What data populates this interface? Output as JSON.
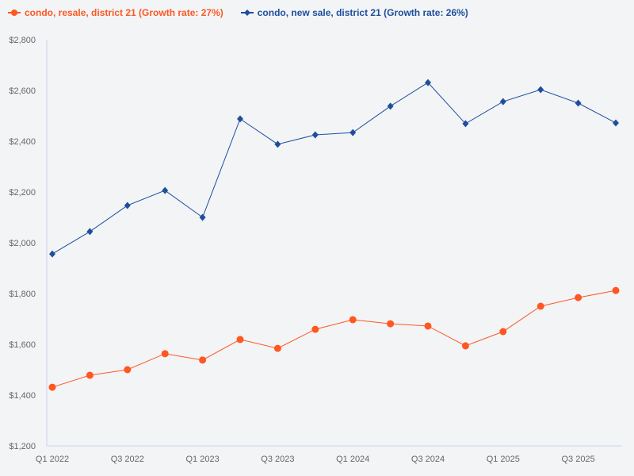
{
  "chart_data": {
    "type": "line",
    "title": "",
    "xlabel": "",
    "ylabel": "",
    "ylim": [
      1200,
      2800
    ],
    "y_ticks": [
      "$1,200",
      "$1,400",
      "$1,600",
      "$1,800",
      "$2,000",
      "$2,200",
      "$2,400",
      "$2,600",
      "$2,800"
    ],
    "y_tick_values": [
      1200,
      1400,
      1600,
      1800,
      2000,
      2200,
      2400,
      2600,
      2800
    ],
    "x": [
      "Q1 2022",
      "Q2 2022",
      "Q3 2022",
      "Q4 2022",
      "Q1 2023",
      "Q2 2023",
      "Q3 2023",
      "Q4 2023",
      "Q1 2024",
      "Q2 2024",
      "Q3 2024",
      "Q4 2024",
      "Q1 2025",
      "Q2 2025",
      "Q3 2025",
      "Q4 2025"
    ],
    "x_tick_labels": [
      "Q1 2022",
      "Q3 2022",
      "Q1 2023",
      "Q3 2023",
      "Q1 2024",
      "Q3 2024",
      "Q1 2025",
      "Q3 2025"
    ],
    "grid": false,
    "legend_position": "top-left",
    "series": [
      {
        "name": "condo, resale, district 21 (Growth rate: 27%)",
        "color": "#ff5722",
        "marker": "circle",
        "values": [
          1431,
          1478,
          1500,
          1563,
          1538,
          1619,
          1584,
          1659,
          1697,
          1681,
          1672,
          1594,
          1650,
          1750,
          1784,
          1812
        ]
      },
      {
        "name": "condo, new sale, district 21 (Growth rate: 26%)",
        "color": "#1f4e9c",
        "marker": "diamond",
        "values": [
          1956,
          2044,
          2147,
          2206,
          2100,
          2488,
          2388,
          2425,
          2434,
          2538,
          2631,
          2469,
          2556,
          2603,
          2550,
          2472
        ]
      }
    ]
  }
}
